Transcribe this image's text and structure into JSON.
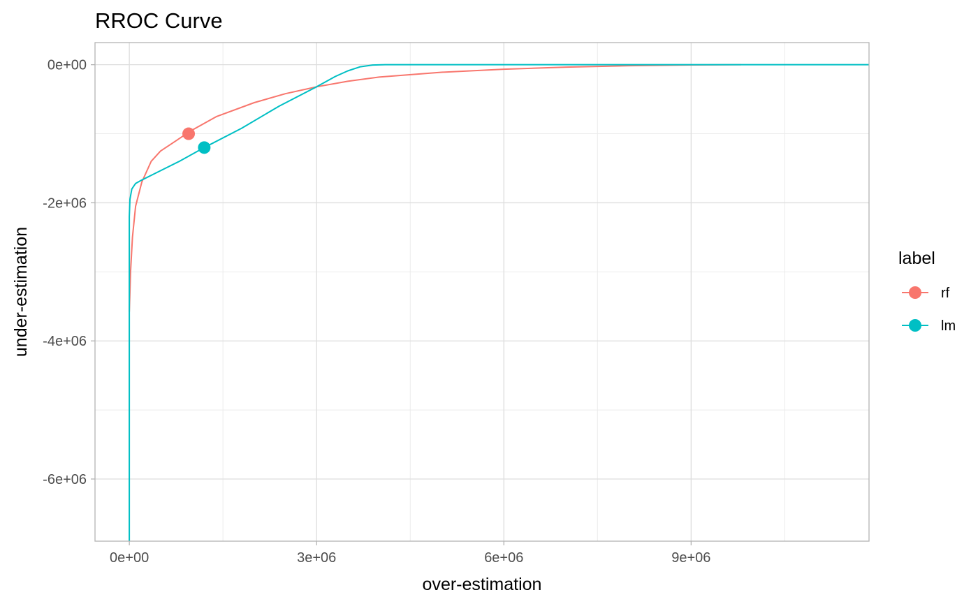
{
  "chart_data": {
    "type": "line",
    "title": "RROC Curve",
    "xlabel": "over-estimation",
    "ylabel": "under-estimation",
    "xlim": [
      -550000,
      11850000
    ],
    "ylim": [
      -6900000,
      320000
    ],
    "x_ticks": [
      0,
      3000000,
      6000000,
      9000000
    ],
    "x_tick_labels": [
      "0e+00",
      "3e+06",
      "6e+06",
      "9e+06"
    ],
    "y_ticks": [
      0,
      -2000000,
      -4000000,
      -6000000
    ],
    "y_tick_labels": [
      "0e+00",
      "-2e+06",
      "-4e+06",
      "-6e+06"
    ],
    "grid": true,
    "legend": {
      "title": "label",
      "position": "right"
    },
    "series": [
      {
        "name": "rf",
        "color": "#F8766D",
        "x": [
          0,
          20000,
          50000,
          100000,
          200000,
          350000,
          500000,
          700000,
          1000000,
          1400000,
          2000000,
          2500000,
          3000000,
          3500000,
          4000000,
          5000000,
          6000000,
          7000000,
          8000000,
          9000000,
          9800000
        ],
        "y": [
          -3580000,
          -3000000,
          -2500000,
          -2050000,
          -1700000,
          -1400000,
          -1250000,
          -1130000,
          -950000,
          -750000,
          -550000,
          -420000,
          -320000,
          -240000,
          -180000,
          -110000,
          -65000,
          -35000,
          -15000,
          -4000,
          0
        ],
        "marker": {
          "x": 950000,
          "y": -1000000
        }
      },
      {
        "name": "lm",
        "color": "#00BFC4",
        "x": [
          0,
          0,
          10000,
          40000,
          100000,
          200000,
          400000,
          800000,
          1200000,
          1800000,
          2400000,
          3000000,
          3300000,
          3500000,
          3700000,
          3900000,
          4100000,
          5000000,
          7000000,
          9000000,
          11850000
        ],
        "y": [
          -6900000,
          -2200000,
          -1950000,
          -1800000,
          -1720000,
          -1670000,
          -1580000,
          -1400000,
          -1200000,
          -920000,
          -600000,
          -320000,
          -170000,
          -90000,
          -30000,
          -5000,
          0,
          0,
          0,
          0,
          0
        ],
        "marker": {
          "x": 1200000,
          "y": -1200000
        }
      }
    ]
  }
}
